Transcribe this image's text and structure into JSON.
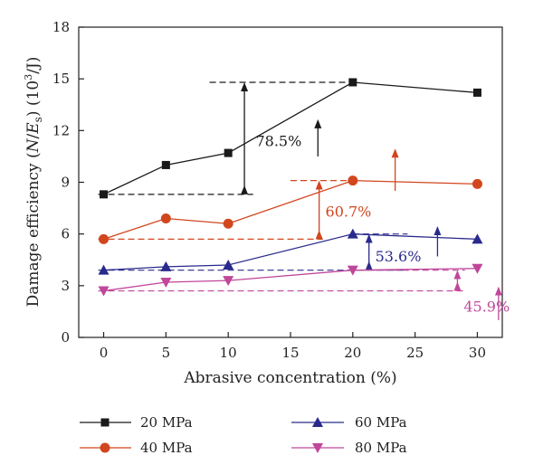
{
  "chart_data": {
    "type": "line",
    "xlabel": "Abrasive concentration (%)",
    "ylabel": {
      "prefix": "Damage efficiency (",
      "N": "N",
      "slash": "/",
      "E": "E",
      "sub": "s",
      "mid": ") (10",
      "sup": "3",
      "suffix": "/J)"
    },
    "xlim": [
      -2,
      32
    ],
    "ylim": [
      0,
      18
    ],
    "xticks": [
      0,
      5,
      10,
      15,
      20,
      25,
      30
    ],
    "yticks": [
      0,
      3,
      6,
      9,
      12,
      15,
      18
    ],
    "grid": false,
    "legend_position": "bottom",
    "x": [
      0,
      5,
      10,
      20,
      30
    ],
    "series": [
      {
        "name": "20 MPa",
        "values": [
          8.3,
          10.0,
          10.7,
          14.8,
          14.2
        ],
        "color": "#1a1a1a",
        "marker": "square"
      },
      {
        "name": "40 MPa",
        "values": [
          5.7,
          6.9,
          6.6,
          9.1,
          8.9
        ],
        "color": "#d2461e",
        "marker": "circle"
      },
      {
        "name": "60 MPa",
        "values": [
          3.9,
          4.1,
          4.2,
          6.0,
          5.7
        ],
        "color": "#2a2a8c",
        "marker": "triangle-up"
      },
      {
        "name": "80 MPa",
        "values": [
          2.7,
          3.2,
          3.3,
          3.9,
          4.0
        ],
        "color": "#c0479a",
        "marker": "triangle-down"
      }
    ],
    "annotations": [
      {
        "text": "78.5%",
        "color": "#1a1a1a",
        "from": 8.3,
        "to": 14.8
      },
      {
        "text": "60.7%",
        "color": "#d2461e",
        "from": 5.7,
        "to": 9.1
      },
      {
        "text": "53.6%",
        "color": "#2a2a8c",
        "from": 3.9,
        "to": 6.0
      },
      {
        "text": "45.9%",
        "color": "#c0479a",
        "from": 2.7,
        "to": 3.9
      }
    ]
  }
}
